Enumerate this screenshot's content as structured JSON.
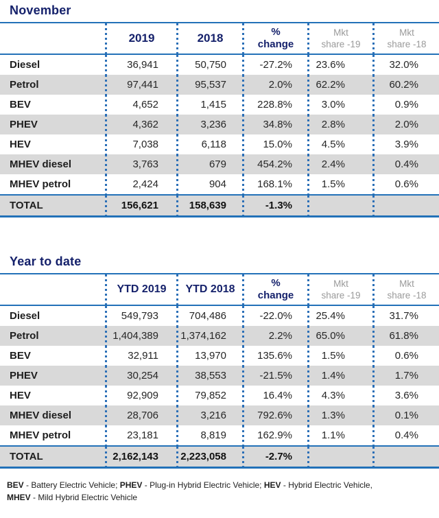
{
  "colors": {
    "heading_navy": "#15216b",
    "line_blue": "#2271b8",
    "dot_blue": "#2b6fb7",
    "muted_header_gray": "#9a9a9a",
    "alt_row_bg": "#d9d9d9"
  },
  "chart_data": [
    {
      "type": "table",
      "title": "November",
      "columns": [
        "",
        "2019",
        "2018",
        "%\nchange",
        "Mkt\nshare -19",
        "Mkt\nshare -18"
      ],
      "rows": [
        {
          "label": "Diesel",
          "values": [
            "36,941",
            "50,750",
            "-27.2%",
            "23.6%",
            "32.0%"
          ]
        },
        {
          "label": "Petrol",
          "values": [
            "97,441",
            "95,537",
            "2.0%",
            "62.2%",
            "60.2%"
          ]
        },
        {
          "label": "BEV",
          "values": [
            "4,652",
            "1,415",
            "228.8%",
            "3.0%",
            "0.9%"
          ]
        },
        {
          "label": "PHEV",
          "values": [
            "4,362",
            "3,236",
            "34.8%",
            "2.8%",
            "2.0%"
          ]
        },
        {
          "label": "HEV",
          "values": [
            "7,038",
            "6,118",
            "15.0%",
            "4.5%",
            "3.9%"
          ]
        },
        {
          "label": "MHEV diesel",
          "values": [
            "3,763",
            "679",
            "454.2%",
            "2.4%",
            "0.4%"
          ]
        },
        {
          "label": "MHEV petrol",
          "values": [
            "2,424",
            "904",
            "168.1%",
            "1.5%",
            "0.6%"
          ]
        }
      ],
      "total": {
        "label": "TOTAL",
        "values": [
          "156,621",
          "158,639",
          "-1.3%",
          "",
          ""
        ]
      }
    },
    {
      "type": "table",
      "title": "Year to date",
      "columns": [
        "",
        "YTD 2019",
        "YTD 2018",
        "%\nchange",
        "Mkt\nshare -19",
        "Mkt\nshare -18"
      ],
      "rows": [
        {
          "label": "Diesel",
          "values": [
            "549,793",
            "704,486",
            "-22.0%",
            "25.4%",
            "31.7%"
          ]
        },
        {
          "label": "Petrol",
          "values": [
            "1,404,389",
            "1,374,162",
            "2.2%",
            "65.0%",
            "61.8%"
          ]
        },
        {
          "label": "BEV",
          "values": [
            "32,911",
            "13,970",
            "135.6%",
            "1.5%",
            "0.6%"
          ]
        },
        {
          "label": "PHEV",
          "values": [
            "30,254",
            "38,553",
            "-21.5%",
            "1.4%",
            "1.7%"
          ]
        },
        {
          "label": "HEV",
          "values": [
            "92,909",
            "79,852",
            "16.4%",
            "4.3%",
            "3.6%"
          ]
        },
        {
          "label": "MHEV diesel",
          "values": [
            "28,706",
            "3,216",
            "792.6%",
            "1.3%",
            "0.1%"
          ]
        },
        {
          "label": "MHEV petrol",
          "values": [
            "23,181",
            "8,819",
            "162.9%",
            "1.1%",
            "0.4%"
          ]
        }
      ],
      "total": {
        "label": "TOTAL",
        "values": [
          "2,162,143",
          "2,223,058",
          "-2.7%",
          "",
          ""
        ]
      }
    }
  ],
  "footnote": {
    "parts": [
      {
        "abbr": "BEV",
        "desc": " - Battery Electric Vehicle; "
      },
      {
        "abbr": "PHEV",
        "desc": " - Plug-in Hybrid Electric Vehicle; "
      },
      {
        "abbr": "HEV",
        "desc": " - Hybrid Electric Vehicle,"
      },
      {
        "abbr": "MHEV",
        "desc": " - Mild Hybrid Electric Vehicle"
      }
    ]
  }
}
